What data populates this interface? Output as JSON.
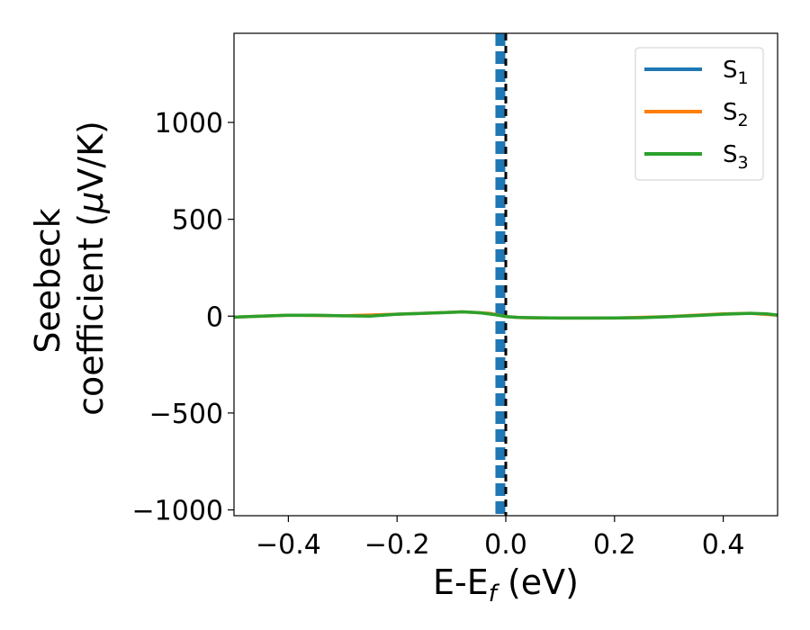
{
  "chart_data": {
    "type": "line",
    "title": "",
    "xlabel": {
      "main": "E-E",
      "sub": "f",
      "unit": " (eV)"
    },
    "ylabel": {
      "line1": "Seebeck",
      "line2_pre": "coefficient  (",
      "mu": "μ",
      "line2_post": "V/K)"
    },
    "xlim": [
      -0.5,
      0.5
    ],
    "ylim": [
      -1030,
      1460
    ],
    "xticks": [
      -0.4,
      -0.2,
      0.0,
      0.2,
      0.4
    ],
    "xtick_labels": [
      "−0.4",
      "−0.2",
      "0.0",
      "0.2",
      "0.4"
    ],
    "yticks": [
      -1000,
      -500,
      0,
      500,
      1000
    ],
    "ytick_labels": [
      "−1000",
      "−500",
      "0",
      "500",
      "1000"
    ],
    "grid": false,
    "legend": {
      "placement": "top-right"
    },
    "vertical_line": {
      "x": 0.0,
      "color": "#000000",
      "style": "dashed"
    },
    "series": [
      {
        "name": "S",
        "sub": "1",
        "color": "#1f77b4",
        "x": [
          -0.012,
          -0.012,
          -0.008,
          -0.008
        ],
        "y": [
          -1030,
          1460,
          1460,
          -1030
        ]
      },
      {
        "name": "S",
        "sub": "2",
        "color": "#ff7f0e",
        "x": [
          -0.5,
          -0.4,
          -0.3,
          -0.2,
          -0.1,
          -0.08,
          -0.03,
          0.0,
          0.03,
          0.1,
          0.2,
          0.3,
          0.4,
          0.45,
          0.5
        ],
        "y": [
          -5,
          5,
          2,
          10,
          20,
          22,
          15,
          -2,
          -8,
          -10,
          -10,
          -2,
          12,
          15,
          5
        ]
      },
      {
        "name": "S",
        "sub": "3",
        "color": "#2ca02c",
        "x": [
          -0.5,
          -0.45,
          -0.4,
          -0.35,
          -0.3,
          -0.25,
          -0.2,
          -0.15,
          -0.1,
          -0.08,
          -0.05,
          -0.02,
          0.0,
          0.02,
          0.05,
          0.1,
          0.15,
          0.2,
          0.25,
          0.3,
          0.35,
          0.4,
          0.45,
          0.48,
          0.5
        ],
        "y": [
          -5,
          0,
          5,
          5,
          2,
          0,
          10,
          15,
          20,
          22,
          18,
          8,
          -2,
          -6,
          -8,
          -10,
          -10,
          -9,
          -8,
          -3,
          3,
          10,
          15,
          12,
          5
        ]
      }
    ]
  }
}
